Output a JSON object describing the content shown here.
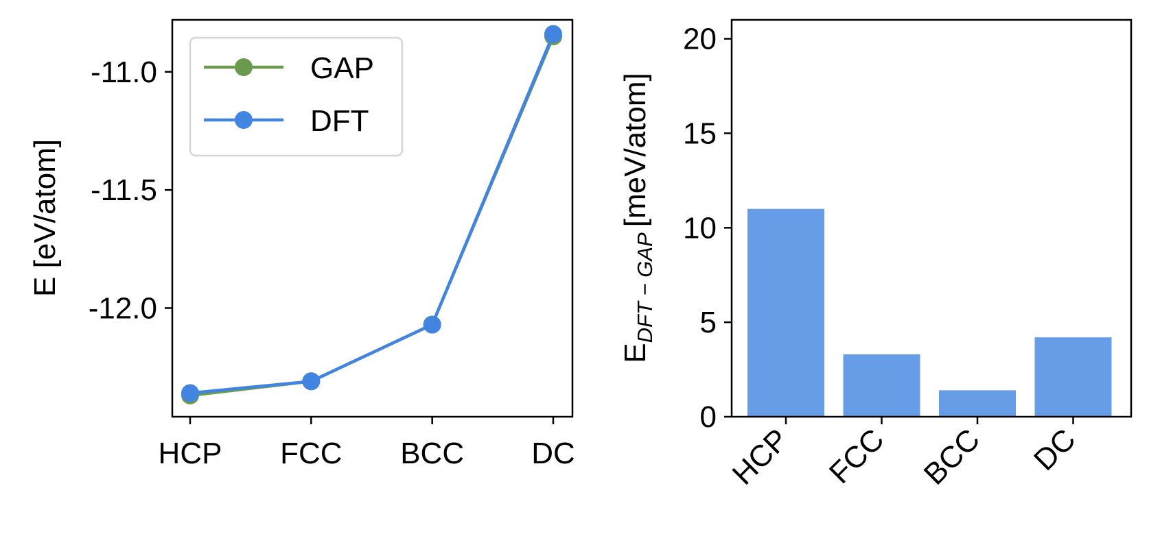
{
  "chart_data": [
    {
      "type": "line",
      "title": "",
      "xlabel": "",
      "ylabel": "E [eV/atom]",
      "categories": [
        "HCP",
        "FCC",
        "BCC",
        "DC"
      ],
      "ylim": [
        -12.46,
        -10.78
      ],
      "yticks": [
        -12.0,
        -11.5,
        -11.0
      ],
      "ytick_labels": [
        "-12.0",
        "-11.5",
        "-11.0"
      ],
      "grid": false,
      "legend_position": "top-left",
      "series": [
        {
          "name": "GAP",
          "color": "#6a9a4e",
          "values": [
            -12.37,
            -12.31,
            -12.07,
            -10.85
          ]
        },
        {
          "name": "DFT",
          "color": "#4285e0",
          "values": [
            -12.36,
            -12.31,
            -12.07,
            -10.84
          ]
        }
      ]
    },
    {
      "type": "bar",
      "title": "",
      "xlabel": "",
      "ylabel_main": "E",
      "ylabel_sub": "DFT − GAP",
      "ylabel_rest": "[meV/atom]",
      "categories": [
        "HCP",
        "FCC",
        "BCC",
        "DC"
      ],
      "values": [
        11.0,
        3.3,
        1.4,
        4.2
      ],
      "ylim": [
        0,
        21
      ],
      "yticks": [
        0,
        5,
        10,
        15,
        20
      ],
      "ytick_labels": [
        "0",
        "5",
        "10",
        "15",
        "20"
      ],
      "bar_color": "#669de6",
      "grid": false
    }
  ]
}
